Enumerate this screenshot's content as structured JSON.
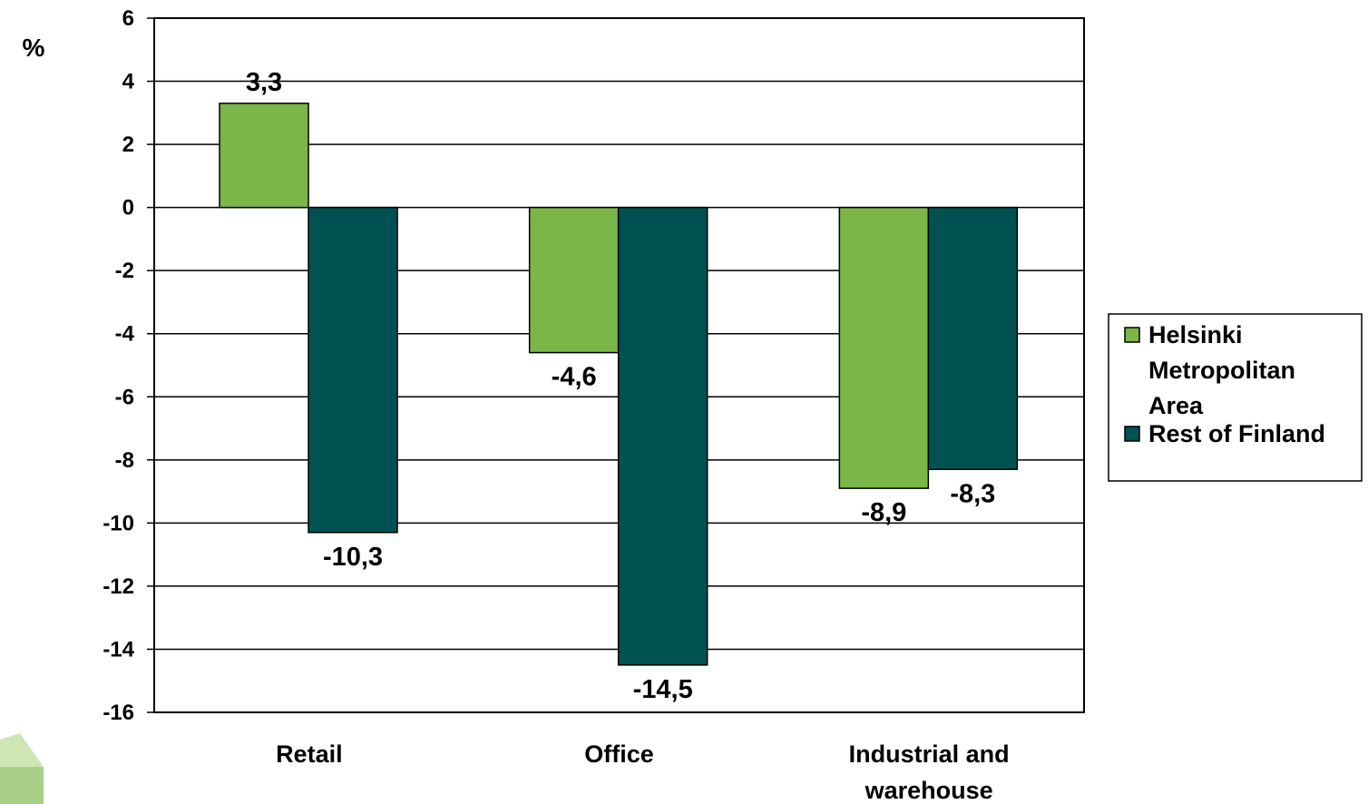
{
  "chart_data": {
    "type": "bar",
    "unit_label": "%",
    "categories": [
      [
        "Retail"
      ],
      [
        "Office"
      ],
      [
        "Industrial and",
        "warehouse"
      ]
    ],
    "series": [
      {
        "name_lines": [
          "Helsinki",
          "Metropolitan",
          "Area"
        ],
        "color": "#7ab648",
        "values": [
          3.3,
          -4.6,
          -8.9
        ],
        "labels": [
          "3,3",
          "-4,6",
          "-8,9"
        ]
      },
      {
        "name_lines": [
          "Rest of Finland"
        ],
        "color": "#005252",
        "values": [
          -10.3,
          -14.5,
          -8.3
        ],
        "labels": [
          "-10,3",
          "-14,5",
          "-8,3"
        ]
      }
    ],
    "ylim": [
      -16,
      6
    ],
    "yticks": [
      6,
      4,
      2,
      0,
      -2,
      -4,
      -6,
      -8,
      -10,
      -12,
      -14,
      -16
    ],
    "grid": true,
    "legend_position": "right"
  },
  "colors": {
    "logo_light": "#cfe6b4",
    "logo_dark": "#a9d089"
  }
}
